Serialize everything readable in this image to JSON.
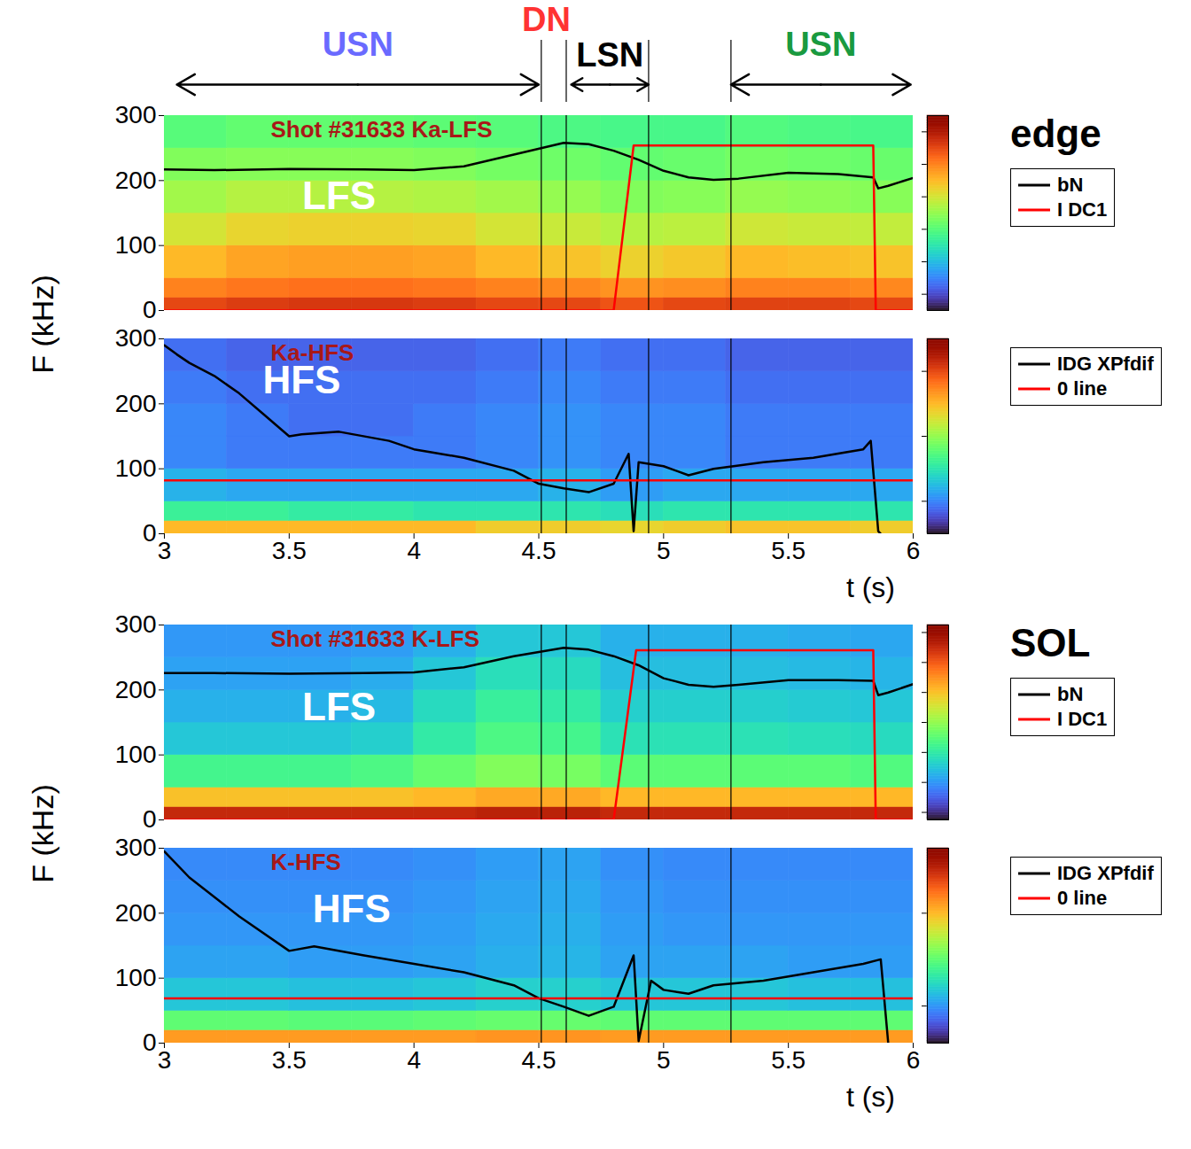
{
  "figure": {
    "y_label": "F (kHz)",
    "x_label": "t (s)",
    "groups": [
      "edge",
      "SOL"
    ],
    "regimes": [
      {
        "label": "USN",
        "color": "#6a6aff",
        "start": 3.05,
        "end": 4.5
      },
      {
        "label": "DN",
        "color": "#ff3333",
        "x": 4.53
      },
      {
        "label": "LSN",
        "color": "#000000",
        "start": 4.63,
        "end": 4.94
      },
      {
        "label": "USN",
        "color": "#1a9a40",
        "start": 5.27,
        "end": 5.99
      }
    ],
    "vertical_lines": [
      4.51,
      4.61,
      4.94,
      5.27
    ]
  },
  "chart_data": [
    {
      "type": "heatmap",
      "group": "edge",
      "title": "Shot #31633 Ka-LFS",
      "xlim": [
        3,
        6
      ],
      "xticks": [
        3,
        3.5,
        4,
        4.5,
        5,
        5.5,
        6
      ],
      "ylim": [
        0,
        300
      ],
      "yticks": [
        0,
        100,
        200,
        300
      ],
      "tick_labels": "y",
      "legend": "right",
      "time_bins": [
        3,
        3.25,
        3.5,
        3.75,
        4,
        4.25,
        4.5,
        4.75,
        5,
        5.25,
        5.5,
        5.75,
        6
      ],
      "freq_bins": [
        0,
        20,
        50,
        100,
        150,
        200,
        250,
        300
      ],
      "cells": [
        [
          -5,
          -4.8,
          -4.7,
          -4.7,
          -4.8,
          -5,
          -5,
          -5.2,
          -5,
          -4.9,
          -4.9,
          -5
        ],
        [
          -6,
          -5.8,
          -5.7,
          -5.7,
          -5.8,
          -6,
          -6.1,
          -6.3,
          -6.2,
          -6,
          -6,
          -6.1
        ],
        [
          -7,
          -6.6,
          -6.5,
          -6.5,
          -6.6,
          -7,
          -7.2,
          -7.5,
          -7.3,
          -7,
          -7.1,
          -7.2
        ],
        [
          -8,
          -7.6,
          -7.5,
          -7.5,
          -7.6,
          -8,
          -8.2,
          -8.5,
          -8.4,
          -8.1,
          -8.2,
          -8.3
        ],
        [
          -8.8,
          -8.5,
          -8.5,
          -8.5,
          -8.6,
          -8.8,
          -9,
          -9.3,
          -9.2,
          -9,
          -9.1,
          -9.2
        ],
        [
          -9.3,
          -9.2,
          -9.2,
          -9.2,
          -9.3,
          -9.5,
          -9.6,
          -9.8,
          -9.7,
          -9.5,
          -9.6,
          -9.7
        ],
        [
          -10,
          -9.8,
          -9.8,
          -9.8,
          -9.9,
          -10,
          -10.2,
          -10.3,
          -10.3,
          -10.1,
          -10.2,
          -10.3
        ]
      ],
      "colorbar": {
        "range": [
          -15,
          -3
        ],
        "ticks": [
          -4,
          -6,
          -8,
          -10,
          -12,
          -14
        ]
      },
      "series": [
        {
          "name": "bN",
          "color": "#000000",
          "x": [
            3,
            3.2,
            3.5,
            3.8,
            4,
            4.2,
            4.4,
            4.6,
            4.7,
            4.8,
            4.9,
            5,
            5.1,
            5.2,
            5.3,
            5.5,
            5.7,
            5.84,
            5.86,
            5.9,
            6
          ],
          "values": [
            217,
            216,
            218,
            217,
            216,
            222,
            240,
            258,
            256,
            246,
            232,
            215,
            205,
            201,
            203,
            212,
            210,
            205,
            188,
            192,
            204
          ]
        },
        {
          "name": "I DC1",
          "color": "#ff0000",
          "x": [
            3,
            4.8,
            4.88,
            5.84,
            5.85,
            6
          ],
          "values": [
            0,
            0,
            254,
            254,
            0,
            0
          ]
        }
      ],
      "annotations": [
        {
          "text": "LFS",
          "x": 3.7,
          "y": 175
        }
      ]
    },
    {
      "type": "heatmap",
      "group": "edge",
      "title": "Ka-HFS",
      "xlim": [
        3,
        6
      ],
      "xticks": [
        3,
        3.5,
        4,
        4.5,
        5,
        5.5,
        6
      ],
      "ylim": [
        0,
        300
      ],
      "yticks": [
        0,
        100,
        200,
        300
      ],
      "legend": "right",
      "time_bins": [
        3,
        3.25,
        3.5,
        3.75,
        4,
        4.25,
        4.5,
        4.75,
        5,
        5.25,
        5.5,
        5.75,
        6
      ],
      "freq_bins": [
        0,
        20,
        50,
        100,
        150,
        200,
        250,
        300
      ],
      "cells": [
        [
          -7,
          -7,
          -7,
          -7,
          -7,
          -7.2,
          -7.2,
          -7.3,
          -7.2,
          -7.1,
          -7.1,
          -7.2
        ],
        [
          -8.8,
          -8.8,
          -8.9,
          -8.9,
          -9,
          -9,
          -9,
          -9.1,
          -9,
          -9,
          -9,
          -9
        ],
        [
          -9.6,
          -9.7,
          -9.7,
          -9.7,
          -9.7,
          -9.7,
          -9.6,
          -9.8,
          -9.7,
          -9.7,
          -9.7,
          -9.7
        ],
        [
          -10,
          -10.1,
          -10.1,
          -10.1,
          -10.1,
          -10,
          -9.9,
          -10,
          -10,
          -10.1,
          -10.1,
          -10.1
        ],
        [
          -10,
          -10.1,
          -10.2,
          -10.2,
          -10.1,
          -10,
          -9.9,
          -10,
          -10,
          -10.1,
          -10.1,
          -10.1
        ],
        [
          -10.1,
          -10.2,
          -10.2,
          -10.2,
          -10.2,
          -10.1,
          -10,
          -10.1,
          -10.1,
          -10.2,
          -10.2,
          -10.2
        ],
        [
          -10.2,
          -10.3,
          -10.3,
          -10.3,
          -10.3,
          -10.2,
          -10.1,
          -10.2,
          -10.2,
          -10.3,
          -10.3,
          -10.3
        ]
      ],
      "colorbar": {
        "range": [
          -11,
          -5
        ],
        "ticks": [
          -6,
          -8,
          -10
        ]
      },
      "series": [
        {
          "name": "IDG XPfdif",
          "color": "#000000",
          "x": [
            3,
            3.05,
            3.1,
            3.2,
            3.3,
            3.4,
            3.5,
            3.55,
            3.7,
            3.9,
            4,
            4.2,
            4.4,
            4.5,
            4.6,
            4.7,
            4.8,
            4.86,
            4.88,
            4.9,
            5,
            5.1,
            5.2,
            5.4,
            5.6,
            5.8,
            5.83,
            5.86,
            5.87
          ],
          "values": [
            290,
            276,
            263,
            243,
            216,
            183,
            150,
            153,
            157,
            143,
            130,
            117,
            97,
            77,
            70,
            64,
            77,
            123,
            4,
            110,
            104,
            90,
            100,
            110,
            117,
            130,
            143,
            4,
            0
          ]
        },
        {
          "name": "0 line",
          "color": "#ff0000",
          "x": [
            3,
            6
          ],
          "values": [
            82,
            82
          ]
        }
      ],
      "annotations": [
        {
          "text": "HFS",
          "x": 3.55,
          "y": 235
        }
      ]
    },
    {
      "type": "heatmap",
      "group": "SOL",
      "title": "Shot #31633 K-LFS",
      "xlim": [
        3,
        6
      ],
      "xticks": [
        3,
        3.5,
        4,
        4.5,
        5,
        5.5,
        6
      ],
      "ylim": [
        0,
        300
      ],
      "yticks": [
        0,
        100,
        200,
        300
      ],
      "tick_labels": "y",
      "legend": "right",
      "time_bins": [
        3,
        3.25,
        3.5,
        3.75,
        4,
        4.25,
        4.5,
        4.75,
        5,
        5.25,
        5.5,
        5.75,
        6
      ],
      "freq_bins": [
        0,
        20,
        50,
        100,
        150,
        200,
        250,
        300
      ],
      "cells": [
        [
          -3,
          -3,
          -3,
          -3,
          -3,
          -2.8,
          -2.8,
          -3,
          -3,
          -3,
          -3,
          -3
        ],
        [
          -6,
          -6,
          -6,
          -6,
          -5.8,
          -5.5,
          -5.5,
          -5.8,
          -5.8,
          -5.8,
          -5.8,
          -5.8
        ],
        [
          -9.5,
          -9.5,
          -9.5,
          -9.3,
          -8.8,
          -8.3,
          -8.5,
          -9,
          -9,
          -9,
          -9,
          -9.2
        ],
        [
          -11,
          -11,
          -11,
          -10.8,
          -10,
          -9.3,
          -9.5,
          -10.3,
          -10.3,
          -10.3,
          -10.4,
          -10.5
        ],
        [
          -11.5,
          -11.5,
          -11.5,
          -11.3,
          -10.5,
          -9.8,
          -10,
          -10.8,
          -10.8,
          -10.8,
          -10.9,
          -11
        ],
        [
          -11.8,
          -11.8,
          -11.8,
          -11.6,
          -11,
          -10.4,
          -10.5,
          -11.2,
          -11.2,
          -11.2,
          -11.3,
          -11.4
        ],
        [
          -12,
          -12,
          -12,
          -11.9,
          -11.5,
          -11,
          -11,
          -11.5,
          -11.5,
          -11.5,
          -11.6,
          -11.7
        ]
      ],
      "colorbar": {
        "range": [
          -14.5,
          -1.5
        ],
        "ticks": [
          -2,
          -4,
          -6,
          -8,
          -10,
          -12,
          -14
        ]
      },
      "series": [
        {
          "name": "bN",
          "color": "#000000",
          "x": [
            3,
            3.2,
            3.5,
            3.8,
            4,
            4.2,
            4.4,
            4.6,
            4.7,
            4.8,
            4.9,
            5,
            5.1,
            5.2,
            5.3,
            5.5,
            5.7,
            5.84,
            5.86,
            5.9,
            6
          ],
          "values": [
            226,
            226,
            225,
            226,
            227,
            235,
            252,
            265,
            262,
            252,
            238,
            218,
            208,
            205,
            208,
            215,
            215,
            214,
            192,
            196,
            209
          ]
        },
        {
          "name": "I DC1",
          "color": "#ff0000",
          "x": [
            3,
            4.8,
            4.89,
            5.84,
            5.85,
            6
          ],
          "values": [
            0,
            0,
            261,
            261,
            0,
            0
          ]
        }
      ],
      "annotations": [
        {
          "text": "LFS",
          "x": 3.7,
          "y": 173
        }
      ]
    },
    {
      "type": "heatmap",
      "group": "SOL",
      "title": "K-HFS",
      "xlim": [
        3,
        6
      ],
      "xticks": [
        3,
        3.5,
        4,
        4.5,
        5,
        5.5,
        6
      ],
      "ylim": [
        0,
        300
      ],
      "yticks": [
        0,
        100,
        200,
        300
      ],
      "legend": "right",
      "time_bins": [
        3,
        3.25,
        3.5,
        3.75,
        4,
        4.25,
        4.5,
        4.75,
        5,
        5.25,
        5.5,
        5.75,
        6
      ],
      "freq_bins": [
        0,
        20,
        50,
        100,
        150,
        200,
        250,
        300
      ],
      "cells": [
        [
          -4.5,
          -4.5,
          -4.5,
          -4.5,
          -4.5,
          -4.4,
          -4.4,
          -4.5,
          -4.5,
          -4.5,
          -4.5,
          -4.5
        ],
        [
          -7.5,
          -7.5,
          -7.6,
          -7.6,
          -7.5,
          -7.4,
          -7.4,
          -7.5,
          -7.5,
          -7.5,
          -7.5,
          -7.5
        ],
        [
          -9.2,
          -9.2,
          -9.3,
          -9.3,
          -9.2,
          -9,
          -9,
          -9.2,
          -9.2,
          -9.2,
          -9.3,
          -9.3
        ],
        [
          -9.8,
          -9.8,
          -9.9,
          -9.9,
          -9.8,
          -9.6,
          -9.5,
          -9.8,
          -9.8,
          -9.8,
          -9.9,
          -9.9
        ],
        [
          -10,
          -10,
          -10,
          -10,
          -9.9,
          -9.7,
          -9.6,
          -9.9,
          -10,
          -10,
          -10,
          -10
        ],
        [
          -10.1,
          -10.1,
          -10.1,
          -10.1,
          -10,
          -9.8,
          -9.7,
          -10,
          -10.1,
          -10.1,
          -10.1,
          -10.1
        ],
        [
          -10.2,
          -10.2,
          -10.2,
          -10.2,
          -10.1,
          -9.9,
          -9.8,
          -10.1,
          -10.2,
          -10.2,
          -10.2,
          -10.2
        ]
      ],
      "colorbar": {
        "range": [
          -12,
          -1.5
        ],
        "ticks": [
          -5,
          -10
        ]
      },
      "series": [
        {
          "name": "IDG XPfdif",
          "color": "#000000",
          "x": [
            3,
            3.1,
            3.3,
            3.5,
            3.6,
            3.8,
            4,
            4.2,
            4.4,
            4.5,
            4.6,
            4.7,
            4.8,
            4.88,
            4.9,
            4.95,
            5,
            5.1,
            5.2,
            5.4,
            5.6,
            5.8,
            5.87,
            5.9
          ],
          "values": [
            295,
            255,
            195,
            142,
            149,
            135,
            122,
            109,
            89,
            69,
            56,
            42,
            56,
            135,
            3,
            96,
            82,
            76,
            89,
            96,
            109,
            122,
            129,
            0
          ]
        },
        {
          "name": "0 line",
          "color": "#ff0000",
          "x": [
            3,
            6
          ],
          "values": [
            69,
            69
          ]
        }
      ],
      "annotations": [
        {
          "text": "HFS",
          "x": 3.75,
          "y": 205
        }
      ]
    }
  ]
}
